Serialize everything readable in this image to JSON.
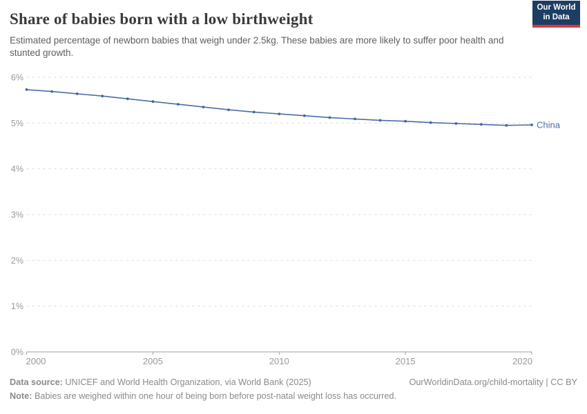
{
  "header": {
    "title": "Share of babies born with a low birthweight",
    "subtitle": "Estimated percentage of newborn babies that weigh under 2.5kg. These babies are more likely to suffer poor health and stunted growth.",
    "logo": {
      "line1": "Our World",
      "line2": "in Data",
      "bg_color": "#1d3d63",
      "stripe_color": "#d73a42"
    }
  },
  "chart_data": {
    "type": "line",
    "title": "Share of babies born with a low birthweight",
    "x": [
      2000,
      2001,
      2002,
      2003,
      2004,
      2005,
      2006,
      2007,
      2008,
      2009,
      2010,
      2011,
      2012,
      2013,
      2014,
      2015,
      2016,
      2017,
      2018,
      2019,
      2020
    ],
    "series": [
      {
        "name": "China",
        "color": "#4a6ca4",
        "point_color": "#3f66a0",
        "values": [
          5.73,
          5.69,
          5.64,
          5.59,
          5.53,
          5.47,
          5.41,
          5.35,
          5.29,
          5.24,
          5.2,
          5.16,
          5.12,
          5.09,
          5.06,
          5.04,
          5.01,
          4.99,
          4.97,
          4.95,
          4.96
        ]
      }
    ],
    "xlabel": "",
    "ylabel": "",
    "xlim": [
      2000,
      2020
    ],
    "ylim": [
      0,
      6
    ],
    "yticks": [
      "0%",
      "1%",
      "2%",
      "3%",
      "4%",
      "5%",
      "6%"
    ],
    "xticks": [
      "2000",
      "2005",
      "2010",
      "2015",
      "2020"
    ],
    "grid": "horizontal-dashed",
    "grid_color": "#dadada",
    "axis_color": "#9e9e9e",
    "tick_label_color": "#999999",
    "legend_position": "end-of-line-label"
  },
  "footer": {
    "datasource_label": "Data source:",
    "datasource_text": " UNICEF and World Health Organization, via World Bank (2025)",
    "rights": "OurWorldinData.org/child-mortality | CC BY",
    "note_label": "Note:",
    "note_text": " Babies are weighed within one hour of being born before post-natal weight loss has occurred."
  }
}
